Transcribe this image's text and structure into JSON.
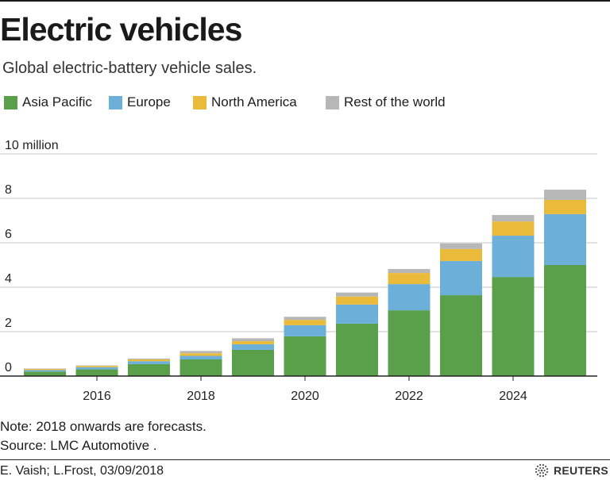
{
  "chart_data": {
    "type": "bar",
    "stacked": true,
    "title": "Electric vehicles",
    "subtitle": "Global electric-battery vehicle sales.",
    "xlabel": "",
    "ylabel": "",
    "ylim": [
      0,
      10
    ],
    "grid": true,
    "legend_position": "top",
    "categories": [
      2015,
      2016,
      2017,
      2018,
      2019,
      2020,
      2021,
      2022,
      2023,
      2024,
      2025
    ],
    "xticks": [
      {
        "value": 2016,
        "label": "2016"
      },
      {
        "value": 2018,
        "label": "2018"
      },
      {
        "value": 2020,
        "label": "2020"
      },
      {
        "value": 2022,
        "label": "2022"
      },
      {
        "value": 2024,
        "label": "2024"
      }
    ],
    "yticks": [
      {
        "value": 0,
        "label": "0"
      },
      {
        "value": 2,
        "label": "2"
      },
      {
        "value": 4,
        "label": "4"
      },
      {
        "value": 6,
        "label": "6"
      },
      {
        "value": 8,
        "label": "8"
      },
      {
        "value": 10,
        "label": "10 million"
      }
    ],
    "series": [
      {
        "name": "Asia Pacific",
        "color": "#5a9f4a",
        "values": [
          0.2,
          0.3,
          0.54,
          0.75,
          1.18,
          1.79,
          2.36,
          2.96,
          3.64,
          4.46,
          5.0
        ]
      },
      {
        "name": "Europe",
        "color": "#6cb0d9",
        "values": [
          0.07,
          0.1,
          0.13,
          0.16,
          0.25,
          0.5,
          0.86,
          1.18,
          1.54,
          1.86,
          2.29
        ]
      },
      {
        "name": "North America",
        "color": "#eabb3a",
        "values": [
          0.05,
          0.06,
          0.08,
          0.12,
          0.14,
          0.24,
          0.36,
          0.5,
          0.54,
          0.64,
          0.64
        ]
      },
      {
        "name": "Rest of the world",
        "color": "#b7b7b7",
        "values": [
          0.02,
          0.02,
          0.04,
          0.1,
          0.13,
          0.14,
          0.18,
          0.18,
          0.25,
          0.29,
          0.46
        ]
      }
    ]
  },
  "colors": {
    "grid": "#c6c6c6",
    "axis": "#222222",
    "logo": "#555555"
  },
  "footer": {
    "note": "Note: 2018 onwards are forecasts.",
    "source": "Source: LMC Automotive .",
    "credit": "E. Vaish; L.Frost, 03/09/2018",
    "brand": "REUTERS"
  }
}
